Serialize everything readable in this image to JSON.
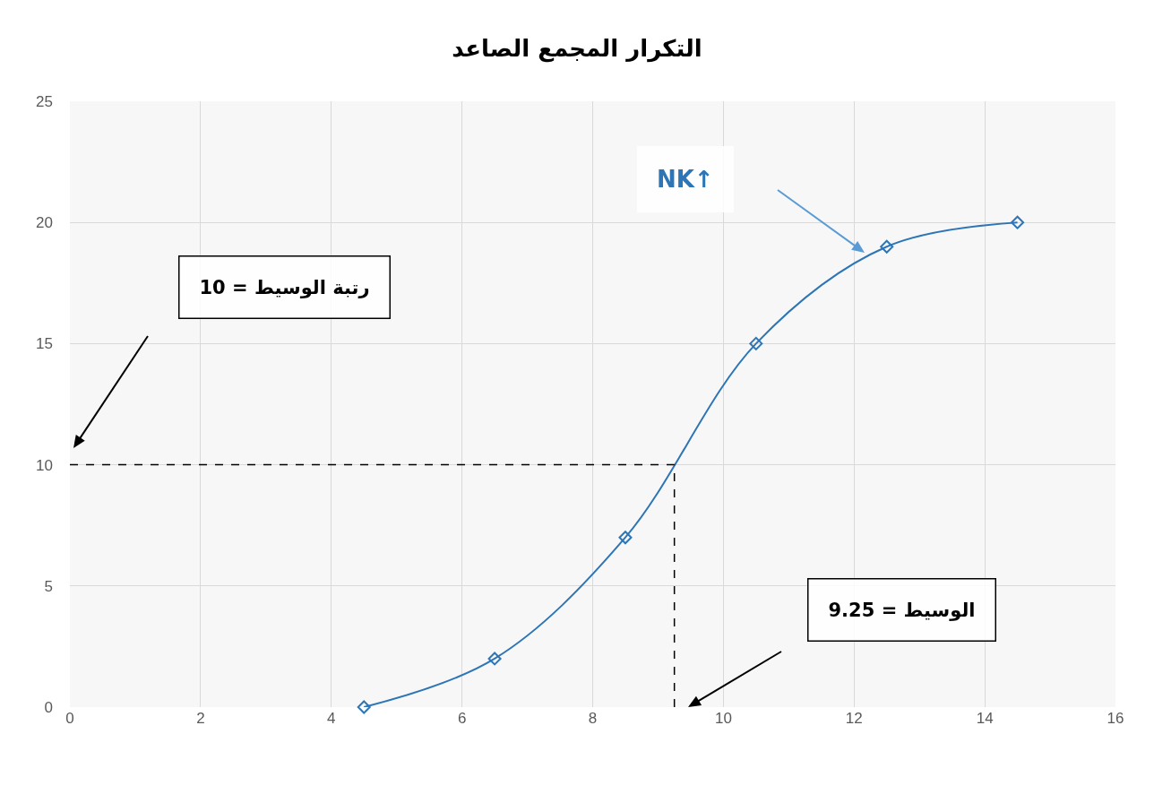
{
  "chart_data": {
    "type": "line",
    "title": "التكرار المجمع الصاعد",
    "x": [
      4.5,
      6.5,
      8.5,
      10.5,
      12.5,
      14.5
    ],
    "series": [
      {
        "color": "#2e75b6",
        "values": [
          0,
          2,
          7,
          15,
          19,
          20
        ]
      }
    ],
    "xlim": [
      0,
      16
    ],
    "xticks": [
      0,
      2,
      4,
      6,
      8,
      10,
      12,
      14,
      16
    ],
    "ylim": [
      0,
      25
    ],
    "yticks": [
      0,
      5,
      10,
      15,
      20,
      25
    ],
    "grid": true,
    "marker": "diamond",
    "line_style": "solid",
    "legend": false,
    "ref_lines": [
      {
        "axis": "y",
        "value": 10,
        "color": "#000000",
        "line_style": "dashed"
      },
      {
        "axis": "x",
        "value": 9.25,
        "color": "#000000",
        "line_style": "dashed"
      }
    ],
    "annotations": [
      "NK↑",
      "رتبة الوسيط = 10",
      "الوسيط = 9.25"
    ]
  }
}
